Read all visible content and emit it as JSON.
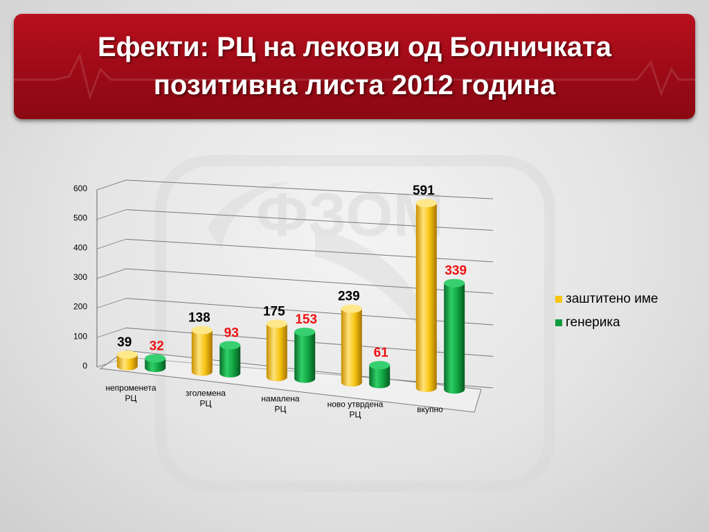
{
  "title": {
    "line1": "Ефекти:  РЦ на лекови од Болничката",
    "line2": "позитивна листа 2012 година"
  },
  "watermark": {
    "text": "ФЗОМ"
  },
  "colors": {
    "banner": "#a10b17",
    "series_a": "#f7c412",
    "series_b": "#0f9c3e",
    "data_label_b": "#ee1111"
  },
  "chart_data": {
    "type": "bar",
    "categories": [
      [
        "непроменета",
        "РЦ"
      ],
      [
        "зголемена",
        "РЦ"
      ],
      [
        "намалена",
        "РЦ"
      ],
      [
        "ново утврдена",
        "РЦ"
      ],
      [
        "вкупно"
      ]
    ],
    "series": [
      {
        "name": "заштитено име",
        "values": [
          39,
          138,
          175,
          239,
          591
        ]
      },
      {
        "name": "генерика",
        "values": [
          32,
          93,
          153,
          61,
          339
        ]
      }
    ],
    "ylim": [
      0,
      600
    ],
    "yticks": [
      0,
      100,
      200,
      300,
      400,
      500,
      600
    ],
    "grid": true,
    "legend": "right",
    "style": "3d-cylinder"
  }
}
